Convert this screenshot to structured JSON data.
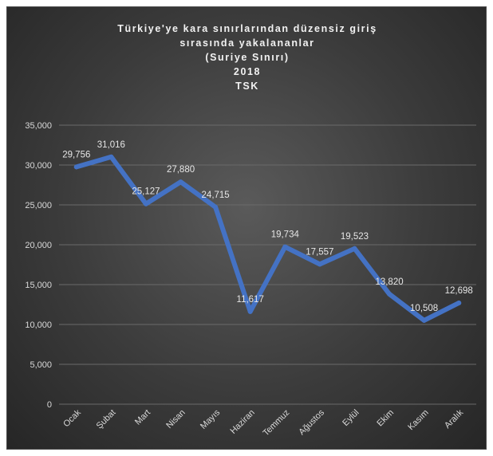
{
  "chart_data": {
    "type": "line",
    "title_lines": [
      "Türkiye'ye kara sınırlarından düzensiz giriş",
      "sırasında yakalananlar",
      "(Suriye Sınırı)",
      "2018",
      "TSK"
    ],
    "categories": [
      "Ocak",
      "Şubat",
      "Mart",
      "Nisan",
      "Mayıs",
      "Haziran",
      "Temmuz",
      "Ağustos",
      "Eylül",
      "Ekim",
      "Kasım",
      "Aralık"
    ],
    "series": [
      {
        "values": [
          29756,
          31016,
          25127,
          27880,
          24715,
          11617,
          19734,
          17557,
          19523,
          13820,
          10508,
          12698
        ],
        "labels": [
          "29,756",
          "31,016",
          "25,127",
          "27,880",
          "24,715",
          "11,617",
          "19,734",
          "17,557",
          "19,523",
          "13,820",
          "10,508",
          "12,698"
        ],
        "color": "#4472c4"
      }
    ],
    "ylim": [
      0,
      35000
    ],
    "yticks": [
      0,
      5000,
      10000,
      15000,
      20000,
      25000,
      30000,
      35000
    ],
    "ytick_labels": [
      "0",
      "5,000",
      "10,000",
      "15,000",
      "20,000",
      "25,000",
      "30,000",
      "35,000"
    ],
    "grid": true,
    "legend": "none",
    "background": "#3a3a3a"
  }
}
